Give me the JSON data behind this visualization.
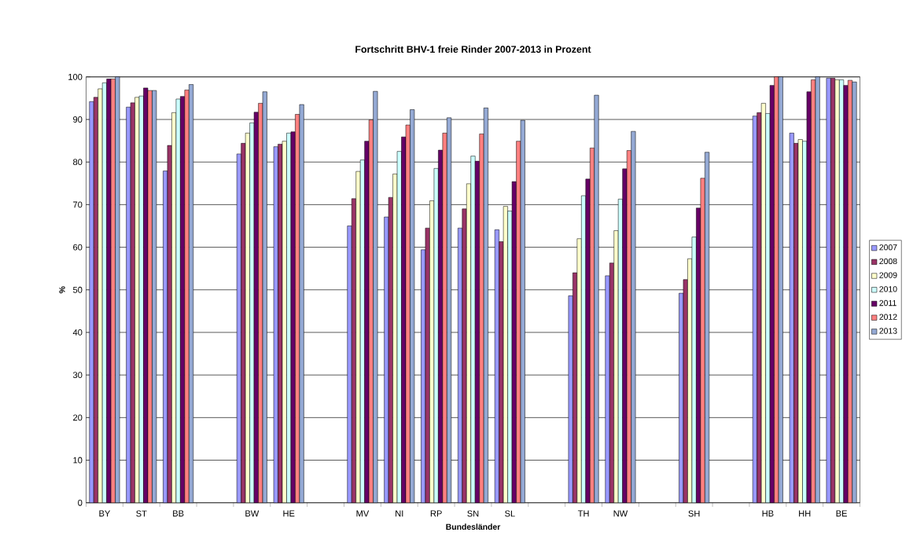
{
  "chart_data": {
    "type": "bar",
    "title": "Fortschritt BHV-1 freie Rinder 2007-2013 in Prozent",
    "xlabel": "Bundesländer",
    "ylabel": "%",
    "categories": [
      "BY",
      "ST",
      "BB",
      null,
      "BW",
      "HE",
      null,
      "MV",
      "NI",
      "RP",
      "SN",
      "SL",
      null,
      "TH",
      "NW",
      null,
      "SH",
      null,
      "HB",
      "HH",
      "BE"
    ],
    "series": [
      {
        "name": "2007",
        "color": "#9999ff",
        "values": [
          94.2,
          92.9,
          77.9,
          null,
          81.9,
          83.6,
          null,
          65.0,
          67.1,
          59.4,
          64.5,
          64.1,
          null,
          48.6,
          53.3,
          null,
          49.2,
          null,
          90.8,
          86.8,
          99.7
        ]
      },
      {
        "name": "2008",
        "color": "#993366",
        "values": [
          95.2,
          93.9,
          83.9,
          null,
          84.4,
          84.2,
          null,
          71.4,
          71.7,
          64.5,
          69.0,
          61.3,
          null,
          54.0,
          56.3,
          null,
          52.4,
          null,
          91.6,
          84.4,
          99.7
        ]
      },
      {
        "name": "2009",
        "color": "#ffffcc",
        "values": [
          97.2,
          95.2,
          91.6,
          null,
          86.8,
          84.9,
          null,
          77.8,
          77.2,
          70.9,
          74.9,
          69.6,
          null,
          62.0,
          63.9,
          null,
          57.3,
          null,
          93.8,
          85.3,
          99.3
        ]
      },
      {
        "name": "2010",
        "color": "#ccffff",
        "values": [
          98.6,
          95.5,
          94.8,
          null,
          89.2,
          86.8,
          null,
          80.5,
          82.5,
          78.5,
          81.4,
          68.5,
          null,
          72.1,
          71.3,
          null,
          62.4,
          null,
          91.4,
          84.9,
          99.3
        ]
      },
      {
        "name": "2011",
        "color": "#660066",
        "values": [
          99.5,
          97.4,
          95.4,
          null,
          91.7,
          87.1,
          null,
          84.9,
          85.9,
          82.8,
          80.2,
          75.4,
          null,
          76.0,
          78.4,
          null,
          69.2,
          null,
          98.0,
          96.5,
          98.0
        ]
      },
      {
        "name": "2012",
        "color": "#ff8080",
        "values": [
          99.5,
          96.8,
          96.9,
          null,
          93.8,
          91.2,
          null,
          89.9,
          88.7,
          86.8,
          86.6,
          84.9,
          null,
          83.3,
          82.7,
          null,
          76.2,
          null,
          100,
          99.3,
          99.2
        ]
      },
      {
        "name": "2013",
        "color": "#94a9d4",
        "values": [
          100,
          96.8,
          98.2,
          null,
          96.5,
          93.5,
          null,
          96.6,
          92.3,
          90.4,
          92.7,
          89.8,
          null,
          95.7,
          87.2,
          null,
          82.3,
          null,
          100,
          100,
          98.8
        ]
      }
    ],
    "ylim": [
      0,
      100
    ],
    "yticks": [
      0,
      10,
      20,
      30,
      40,
      50,
      60,
      70,
      80,
      90,
      100
    ],
    "grid": "y",
    "legend": "right"
  }
}
